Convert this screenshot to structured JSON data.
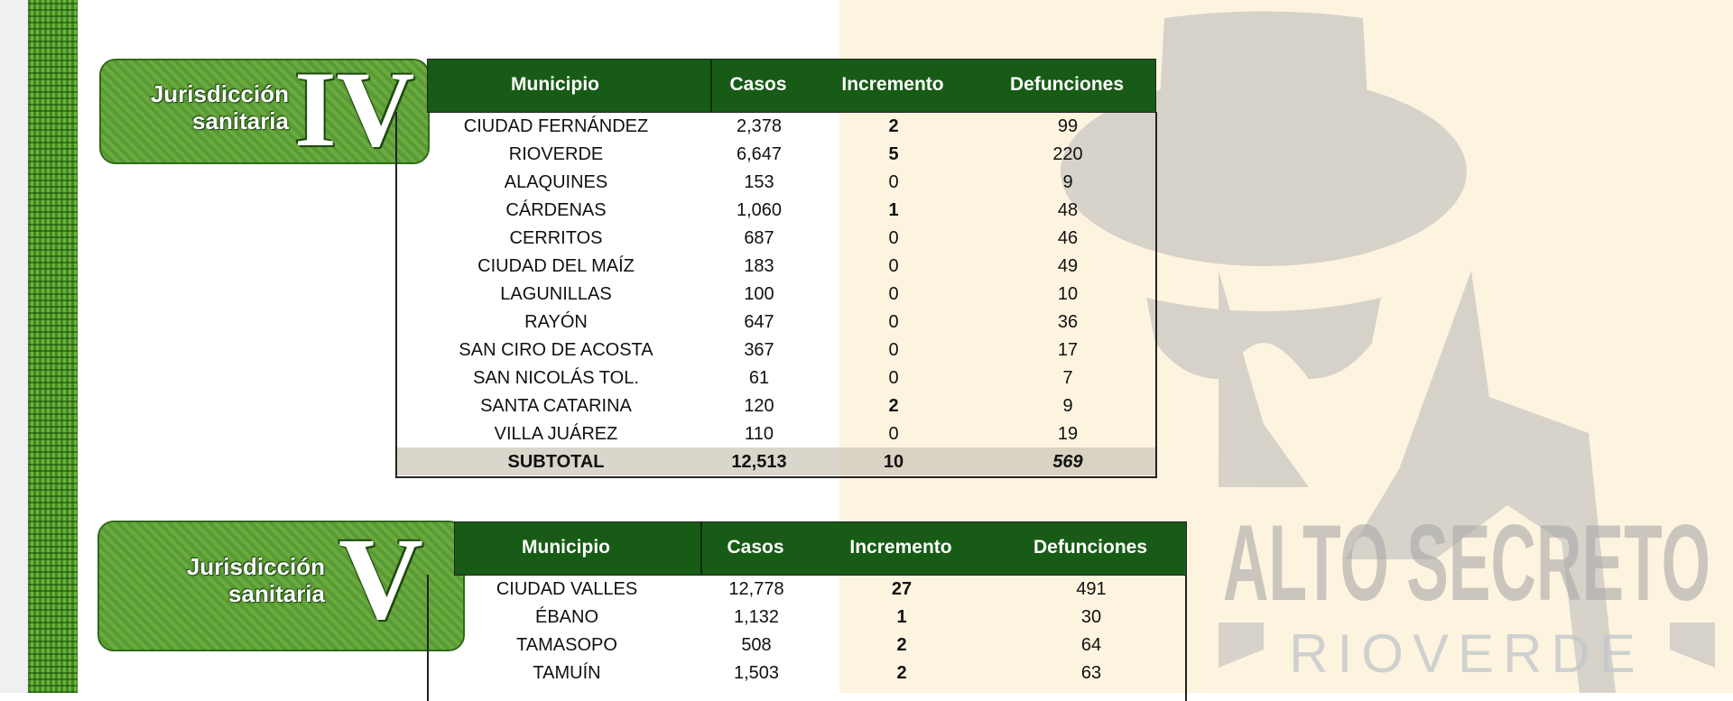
{
  "watermark": {
    "title": "ALTO SECRETO",
    "subtitle": "RIOVERDE"
  },
  "colors": {
    "header_green": "#185b16",
    "badge_green": "#5a9a34",
    "cream": "#fdf4e0"
  },
  "columns": [
    "Municipio",
    "Casos",
    "Incremento",
    "Defunciones"
  ],
  "jurisdiccion_iv": {
    "label_line1": "Jurisdicción",
    "label_line2": "sanitaria",
    "numeral": "IV",
    "rows": [
      [
        "CIUDAD FERNÁNDEZ",
        "2,378",
        "2",
        "99"
      ],
      [
        "RIOVERDE",
        "6,647",
        "5",
        "220"
      ],
      [
        "ALAQUINES",
        "153",
        "0",
        "9"
      ],
      [
        "CÁRDENAS",
        "1,060",
        "1",
        "48"
      ],
      [
        "CERRITOS",
        "687",
        "0",
        "46"
      ],
      [
        "CIUDAD DEL MAÍZ",
        "183",
        "0",
        "49"
      ],
      [
        "LAGUNILLAS",
        "100",
        "0",
        "10"
      ],
      [
        "RAYÓN",
        "647",
        "0",
        "36"
      ],
      [
        "SAN CIRO DE ACOSTA",
        "367",
        "0",
        "17"
      ],
      [
        "SAN NICOLÁS TOL.",
        "61",
        "0",
        "7"
      ],
      [
        "SANTA CATARINA",
        "120",
        "2",
        "9"
      ],
      [
        "VILLA JUÁREZ",
        "110",
        "0",
        "19"
      ]
    ],
    "subtotal": [
      "SUBTOTAL",
      "12,513",
      "10",
      "569"
    ]
  },
  "jurisdiccion_v": {
    "label_line1": "Jurisdicción",
    "label_line2": "sanitaria",
    "numeral": "V",
    "rows": [
      [
        "CIUDAD VALLES",
        "12,778",
        "27",
        "491"
      ],
      [
        "ÉBANO",
        "1,132",
        "1",
        "30"
      ],
      [
        "TAMASOPO",
        "508",
        "2",
        "64"
      ],
      [
        "TAMUÍN",
        "1,503",
        "2",
        "63"
      ]
    ]
  }
}
